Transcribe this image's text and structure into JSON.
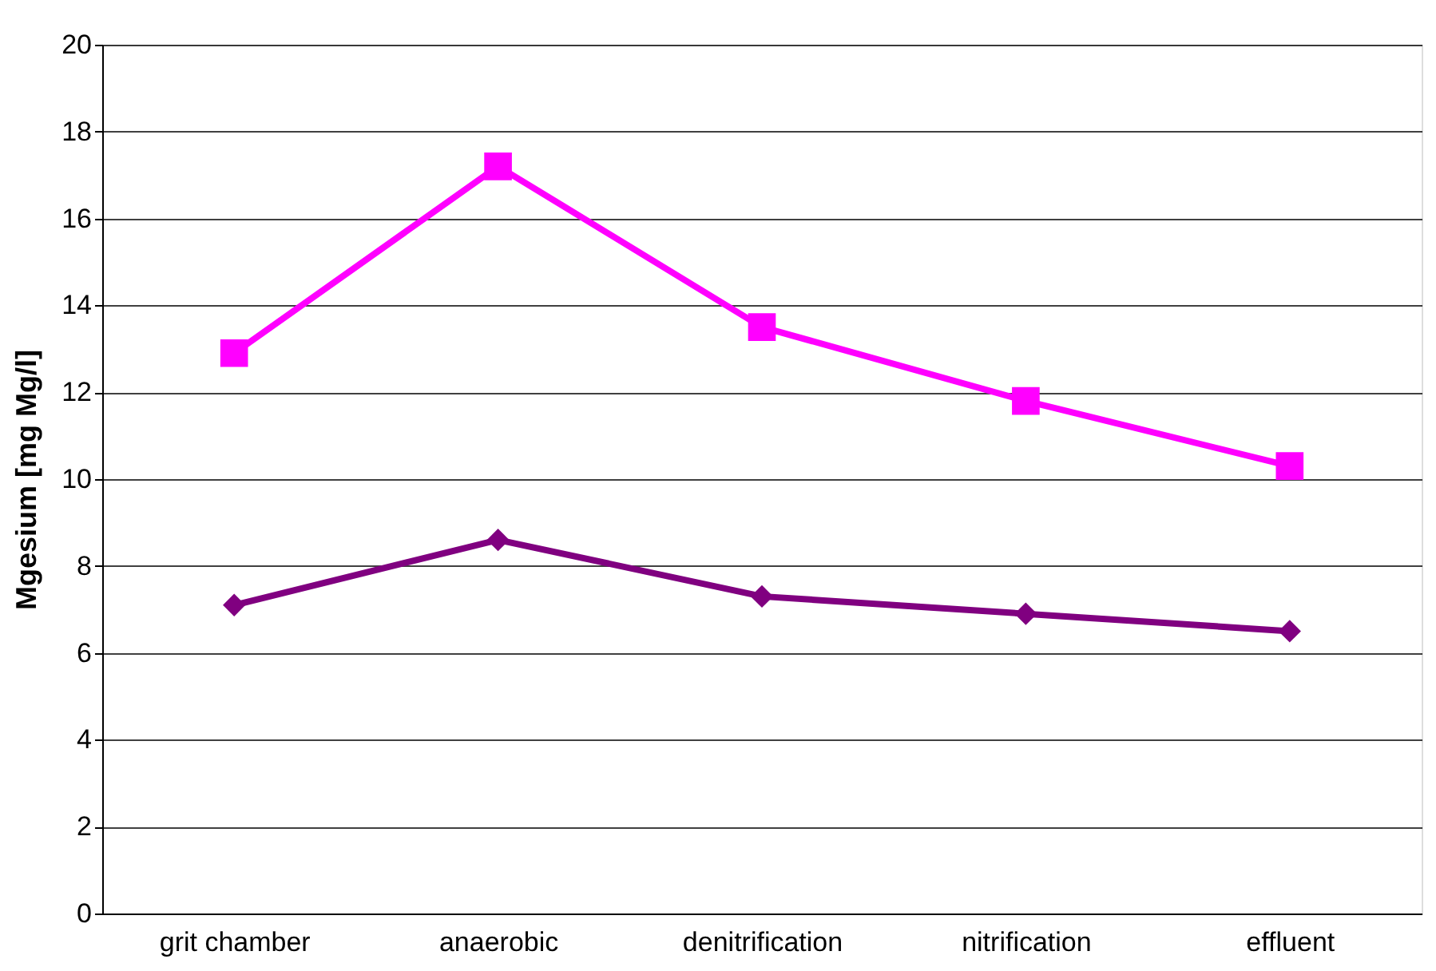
{
  "chart_data": {
    "type": "line",
    "ylabel": "Mgesium [mg Mg/l]",
    "categories": [
      "grit chamber",
      "anaerobic",
      "denitrification",
      "nitrification",
      "effluent"
    ],
    "series": [
      {
        "color": "#ff00ff",
        "marker": "square",
        "values": [
          12.9,
          17.2,
          13.5,
          11.8,
          10.3
        ]
      },
      {
        "color": "#800080",
        "marker": "diamond",
        "values": [
          7.1,
          8.6,
          7.3,
          6.9,
          6.5
        ]
      }
    ],
    "ylim": [
      0,
      20
    ],
    "yticks": [
      0,
      2,
      4,
      6,
      8,
      10,
      12,
      14,
      16,
      18,
      20
    ],
    "grid": "y",
    "line_style": "solid"
  }
}
